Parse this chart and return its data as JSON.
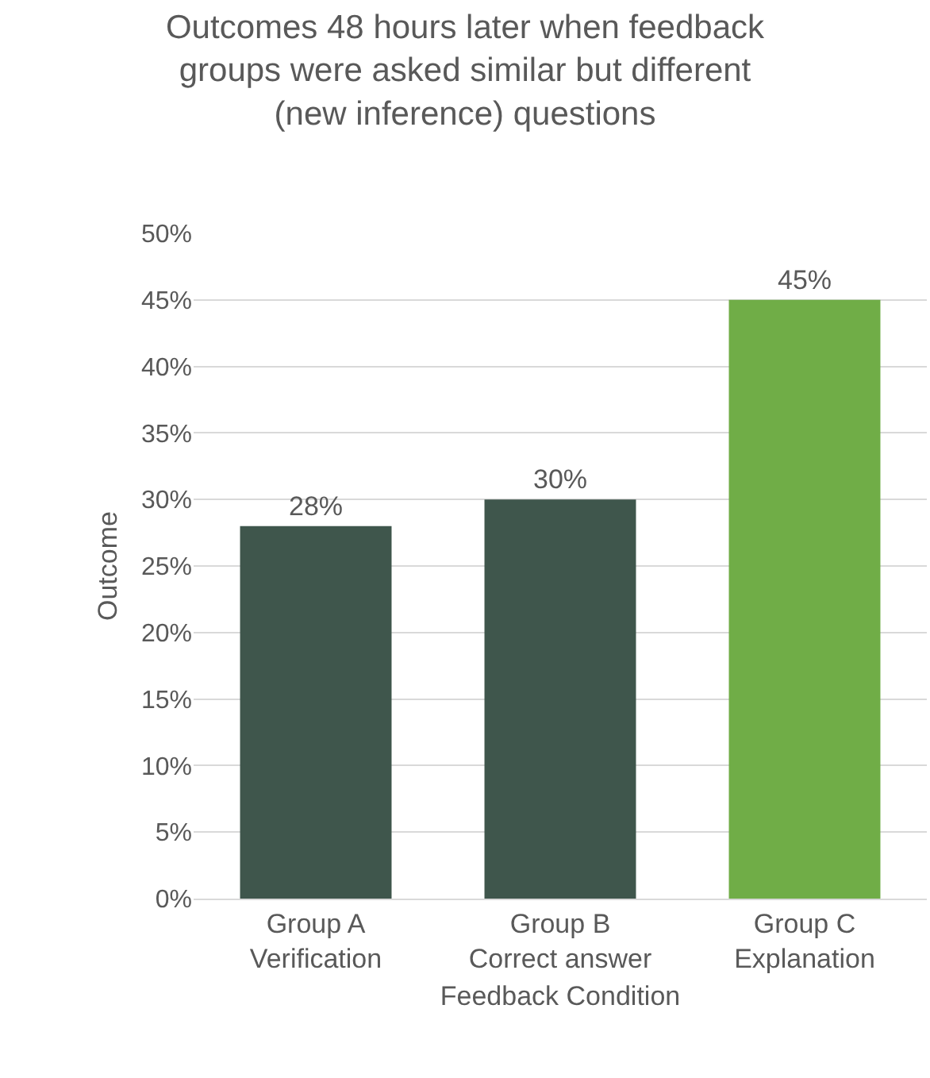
{
  "chart_data": {
    "type": "bar",
    "title": "Outcomes 48 hours later when feedback\ngroups were asked similar but different\n(new inference) questions",
    "xlabel": "Feedback Condition",
    "ylabel": "Outcome",
    "categories": [
      "Group A\nVerification",
      "Group B\nCorrect answer",
      "Group C\nExplanation"
    ],
    "values": [
      28,
      30,
      45
    ],
    "colors": [
      "#3f564c",
      "#3f564c",
      "#70ad47"
    ],
    "value_labels": [
      "28%",
      "30%",
      "45%"
    ],
    "ylim": [
      0,
      50
    ],
    "yticks": [
      {
        "value": 0,
        "label": "0%"
      },
      {
        "value": 5,
        "label": "5%"
      },
      {
        "value": 10,
        "label": "10%"
      },
      {
        "value": 15,
        "label": "15%"
      },
      {
        "value": 20,
        "label": "20%"
      },
      {
        "value": 25,
        "label": "25%"
      },
      {
        "value": 30,
        "label": "30%"
      },
      {
        "value": 35,
        "label": "35%"
      },
      {
        "value": 40,
        "label": "40%"
      },
      {
        "value": 45,
        "label": "45%"
      },
      {
        "value": 50,
        "label": "50%"
      }
    ],
    "grid": "y"
  }
}
